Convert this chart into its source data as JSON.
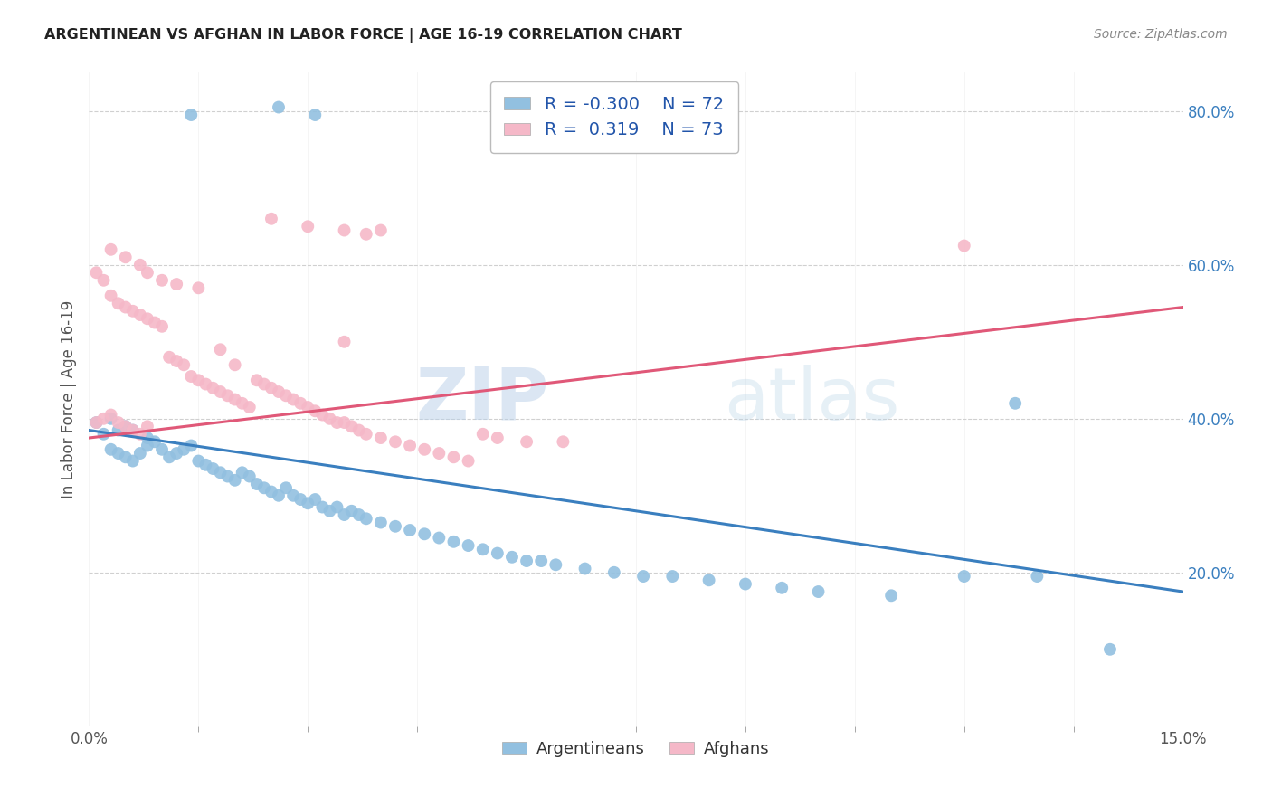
{
  "title": "ARGENTINEAN VS AFGHAN IN LABOR FORCE | AGE 16-19 CORRELATION CHART",
  "source": "Source: ZipAtlas.com",
  "ylabel": "In Labor Force | Age 16-19",
  "xlim": [
    0.0,
    0.15
  ],
  "ylim": [
    0.0,
    0.85
  ],
  "ytick_vals": [
    0.2,
    0.4,
    0.6,
    0.8
  ],
  "xtick_vals": [
    0.0,
    0.15
  ],
  "legend_labels": [
    "Argentineans",
    "Afghans"
  ],
  "legend_R_blue": "R = -0.300",
  "legend_R_pink": "R =  0.319",
  "legend_N_blue": "N = 72",
  "legend_N_pink": "N = 73",
  "blue_color": "#92c0e0",
  "pink_color": "#f5b8c8",
  "blue_line_color": "#3a7fbf",
  "pink_line_color": "#e05878",
  "watermark": "ZIPatlas",
  "background_color": "#ffffff",
  "grid_color": "#d0d0d0",
  "blue_line_x0": 0.0,
  "blue_line_y0": 0.385,
  "blue_line_x1": 0.15,
  "blue_line_y1": 0.175,
  "pink_line_x0": 0.0,
  "pink_line_y0": 0.375,
  "pink_line_x1": 0.15,
  "pink_line_y1": 0.545,
  "blue_scatter_x": [
    0.014,
    0.026,
    0.031,
    0.004,
    0.002,
    0.001,
    0.003,
    0.005,
    0.006,
    0.008,
    0.003,
    0.004,
    0.005,
    0.006,
    0.007,
    0.008,
    0.009,
    0.01,
    0.011,
    0.012,
    0.013,
    0.014,
    0.015,
    0.016,
    0.017,
    0.018,
    0.019,
    0.02,
    0.021,
    0.022,
    0.023,
    0.024,
    0.025,
    0.026,
    0.027,
    0.028,
    0.029,
    0.03,
    0.031,
    0.032,
    0.033,
    0.034,
    0.035,
    0.036,
    0.037,
    0.038,
    0.04,
    0.042,
    0.044,
    0.046,
    0.048,
    0.05,
    0.052,
    0.054,
    0.056,
    0.058,
    0.06,
    0.062,
    0.064,
    0.068,
    0.072,
    0.076,
    0.08,
    0.085,
    0.09,
    0.095,
    0.1,
    0.11,
    0.12,
    0.13,
    0.127,
    0.14
  ],
  "blue_scatter_y": [
    0.795,
    0.805,
    0.795,
    0.385,
    0.38,
    0.395,
    0.4,
    0.39,
    0.385,
    0.375,
    0.36,
    0.355,
    0.35,
    0.345,
    0.355,
    0.365,
    0.37,
    0.36,
    0.35,
    0.355,
    0.36,
    0.365,
    0.345,
    0.34,
    0.335,
    0.33,
    0.325,
    0.32,
    0.33,
    0.325,
    0.315,
    0.31,
    0.305,
    0.3,
    0.31,
    0.3,
    0.295,
    0.29,
    0.295,
    0.285,
    0.28,
    0.285,
    0.275,
    0.28,
    0.275,
    0.27,
    0.265,
    0.26,
    0.255,
    0.25,
    0.245,
    0.24,
    0.235,
    0.23,
    0.225,
    0.22,
    0.215,
    0.215,
    0.21,
    0.205,
    0.2,
    0.195,
    0.195,
    0.19,
    0.185,
    0.18,
    0.175,
    0.17,
    0.195,
    0.195,
    0.42,
    0.1
  ],
  "pink_scatter_x": [
    0.001,
    0.002,
    0.003,
    0.004,
    0.005,
    0.006,
    0.007,
    0.008,
    0.001,
    0.002,
    0.003,
    0.004,
    0.005,
    0.006,
    0.007,
    0.008,
    0.009,
    0.01,
    0.011,
    0.012,
    0.013,
    0.014,
    0.015,
    0.016,
    0.017,
    0.018,
    0.019,
    0.02,
    0.021,
    0.022,
    0.023,
    0.024,
    0.025,
    0.026,
    0.027,
    0.028,
    0.029,
    0.03,
    0.031,
    0.032,
    0.033,
    0.034,
    0.035,
    0.036,
    0.037,
    0.038,
    0.04,
    0.042,
    0.044,
    0.046,
    0.048,
    0.05,
    0.052,
    0.054,
    0.056,
    0.06,
    0.065,
    0.12,
    0.025,
    0.03,
    0.035,
    0.038,
    0.04,
    0.035,
    0.003,
    0.005,
    0.007,
    0.008,
    0.01,
    0.012,
    0.015,
    0.018,
    0.02
  ],
  "pink_scatter_y": [
    0.395,
    0.4,
    0.405,
    0.395,
    0.39,
    0.385,
    0.38,
    0.39,
    0.59,
    0.58,
    0.56,
    0.55,
    0.545,
    0.54,
    0.535,
    0.53,
    0.525,
    0.52,
    0.48,
    0.475,
    0.47,
    0.455,
    0.45,
    0.445,
    0.44,
    0.435,
    0.43,
    0.425,
    0.42,
    0.415,
    0.45,
    0.445,
    0.44,
    0.435,
    0.43,
    0.425,
    0.42,
    0.415,
    0.41,
    0.405,
    0.4,
    0.395,
    0.395,
    0.39,
    0.385,
    0.38,
    0.375,
    0.37,
    0.365,
    0.36,
    0.355,
    0.35,
    0.345,
    0.38,
    0.375,
    0.37,
    0.37,
    0.625,
    0.66,
    0.65,
    0.645,
    0.64,
    0.645,
    0.5,
    0.62,
    0.61,
    0.6,
    0.59,
    0.58,
    0.575,
    0.57,
    0.49,
    0.47
  ]
}
